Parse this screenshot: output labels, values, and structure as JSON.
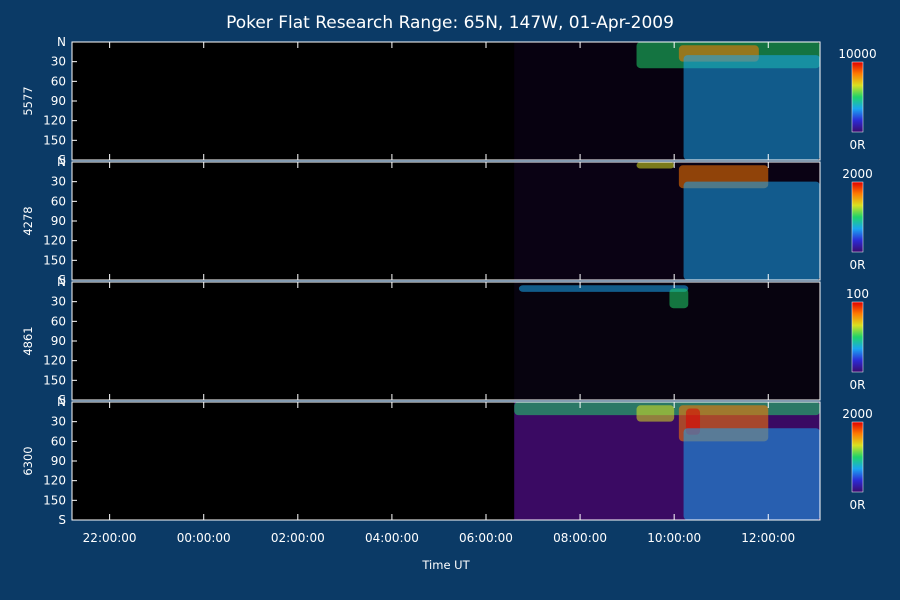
{
  "chart_data": {
    "type": "heatmap",
    "title": "Poker Flat Research Range: 65N, 147W, 01-Apr-2009",
    "xlabel": "Time UT",
    "x_tick_labels": [
      "22:00:00",
      "00:00:00",
      "02:00:00",
      "04:00:00",
      "06:00:00",
      "08:00:00",
      "10:00:00",
      "12:00:00"
    ],
    "x_range_hours": [
      21.2,
      37.1
    ],
    "x_tick_hours": [
      22,
      24,
      26,
      28,
      30,
      32,
      34,
      36
    ],
    "y_tick_labels": [
      "N",
      "30",
      "60",
      "90",
      "120",
      "150",
      "S"
    ],
    "y_tick_values": [
      0,
      30,
      60,
      90,
      120,
      150,
      180
    ],
    "ylim": [
      0,
      180
    ],
    "data_start_hour": 30.6,
    "panels": [
      {
        "name": "5577",
        "colorbar_max_label": "10000",
        "colorbar_min_label": "0R",
        "background": "#000000",
        "data_background": "#070110",
        "features": [
          {
            "t0": 33.2,
            "t1": 37.1,
            "y0": 0,
            "y1": 40,
            "level": 0.55
          },
          {
            "t0": 34.1,
            "t1": 35.8,
            "y0": 5,
            "y1": 30,
            "level": 0.85
          },
          {
            "t0": 34.2,
            "t1": 37.1,
            "y0": 20,
            "y1": 180,
            "level": 0.3
          }
        ]
      },
      {
        "name": "4278",
        "colorbar_max_label": "2000",
        "colorbar_min_label": "0R",
        "background": "#000000",
        "data_background": "#0a0214",
        "features": [
          {
            "t0": 33.2,
            "t1": 34.0,
            "y0": 0,
            "y1": 10,
            "level": 0.6
          },
          {
            "t0": 34.1,
            "t1": 36.0,
            "y0": 5,
            "y1": 40,
            "level": 0.8
          },
          {
            "t0": 34.2,
            "t1": 37.1,
            "y0": 30,
            "y1": 180,
            "level": 0.3
          }
        ]
      },
      {
        "name": "4861",
        "colorbar_max_label": "100",
        "colorbar_min_label": "0R",
        "background": "#000000",
        "data_background": "#07030f",
        "features": [
          {
            "t0": 30.7,
            "t1": 34.3,
            "y0": 5,
            "y1": 15,
            "level": 0.4
          },
          {
            "t0": 33.9,
            "t1": 34.3,
            "y0": 10,
            "y1": 40,
            "level": 0.55
          }
        ]
      },
      {
        "name": "6300",
        "colorbar_max_label": "2000",
        "colorbar_min_label": "0R",
        "background": "#000000",
        "data_background": "#3a0a63",
        "features": [
          {
            "t0": 30.6,
            "t1": 37.1,
            "y0": 0,
            "y1": 20,
            "level": 0.55
          },
          {
            "t0": 33.2,
            "t1": 34.0,
            "y0": 5,
            "y1": 30,
            "level": 0.7
          },
          {
            "t0": 34.1,
            "t1": 36.0,
            "y0": 5,
            "y1": 60,
            "level": 0.8
          },
          {
            "t0": 34.25,
            "t1": 34.55,
            "y0": 10,
            "y1": 50,
            "level": 0.97
          },
          {
            "t0": 34.2,
            "t1": 37.1,
            "y0": 40,
            "y1": 180,
            "level": 0.3
          }
        ]
      }
    ],
    "colors": {
      "page_background": "#0b3a66",
      "colorscale": [
        "#3b0a6e",
        "#2b2bd6",
        "#1aa6f0",
        "#1fd46a",
        "#d8e020",
        "#ff7a00",
        "#e00000"
      ]
    }
  }
}
